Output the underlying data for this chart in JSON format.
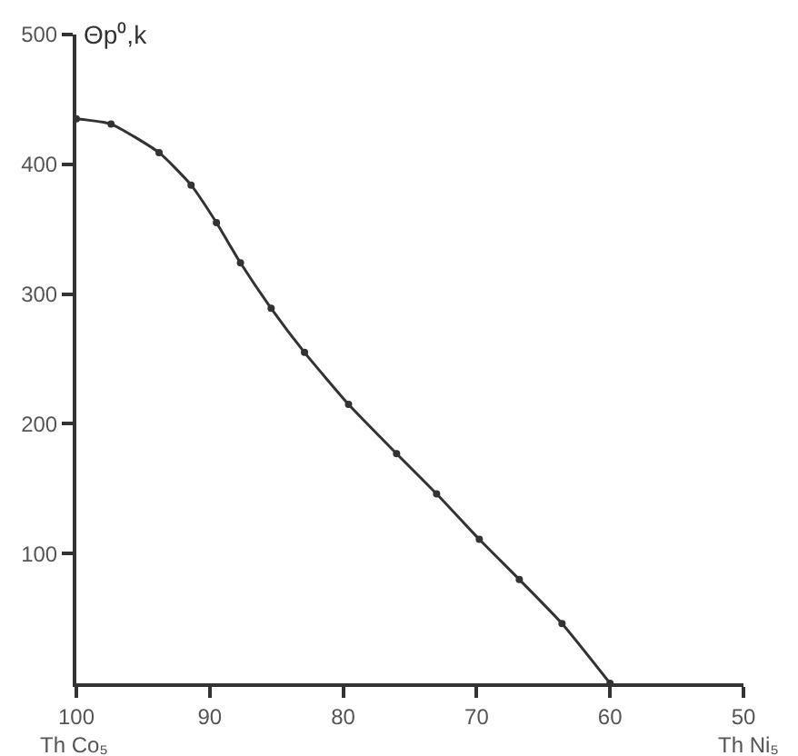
{
  "chart_data": {
    "type": "line",
    "ylabel": "Θp⁰,k",
    "annotations": [
      "Th Co₅",
      "Th Ni₅"
    ],
    "x": [
      100,
      97.4,
      93.8,
      91.4,
      89.5,
      87.7,
      85.4,
      82.9,
      79.6,
      76,
      73,
      69.8,
      66.8,
      63.6,
      60
    ],
    "series": [
      {
        "color": "#333333",
        "values": [
          435,
          431,
          409,
          384,
          355,
          324,
          289,
          255,
          215,
          177,
          146,
          111,
          80,
          46,
          0
        ]
      }
    ],
    "xlim": [
      100,
      50
    ],
    "xticks": [
      100,
      90,
      80,
      70,
      60,
      50
    ],
    "ylim": [
      0,
      500
    ],
    "yticks": [
      100,
      200,
      300,
      400,
      500
    ],
    "marker": "circle",
    "line_style": "solid"
  }
}
